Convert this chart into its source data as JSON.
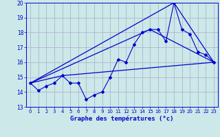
{
  "title": "Graphe des températures (°c)",
  "bg_color": "#cce8e8",
  "grid_color": "#aaaacc",
  "line_color": "#0000cc",
  "xlim": [
    -0.5,
    23.5
  ],
  "ylim": [
    13,
    20
  ],
  "xticks": [
    0,
    1,
    2,
    3,
    4,
    5,
    6,
    7,
    8,
    9,
    10,
    11,
    12,
    13,
    14,
    15,
    16,
    17,
    18,
    19,
    20,
    21,
    22,
    23
  ],
  "yticks": [
    13,
    14,
    15,
    16,
    17,
    18,
    19,
    20
  ],
  "series1_x": [
    0,
    1,
    2,
    3,
    4,
    5,
    6,
    7,
    8,
    9,
    10,
    11,
    12,
    13,
    14,
    15,
    16,
    17,
    18,
    19,
    20,
    21,
    22,
    23
  ],
  "series1_y": [
    14.6,
    14.1,
    14.4,
    14.6,
    15.1,
    14.6,
    14.6,
    13.5,
    13.8,
    14.0,
    15.0,
    16.2,
    16.0,
    17.2,
    18.0,
    18.2,
    18.2,
    17.4,
    20.0,
    18.2,
    17.9,
    16.7,
    16.5,
    16.0
  ],
  "series2_x": [
    0,
    4,
    23
  ],
  "series2_y": [
    14.6,
    15.1,
    16.0
  ],
  "series3_x": [
    0,
    18,
    23
  ],
  "series3_y": [
    14.6,
    20.0,
    16.0
  ],
  "series4_x": [
    0,
    15,
    23
  ],
  "series4_y": [
    14.6,
    18.2,
    16.0
  ]
}
